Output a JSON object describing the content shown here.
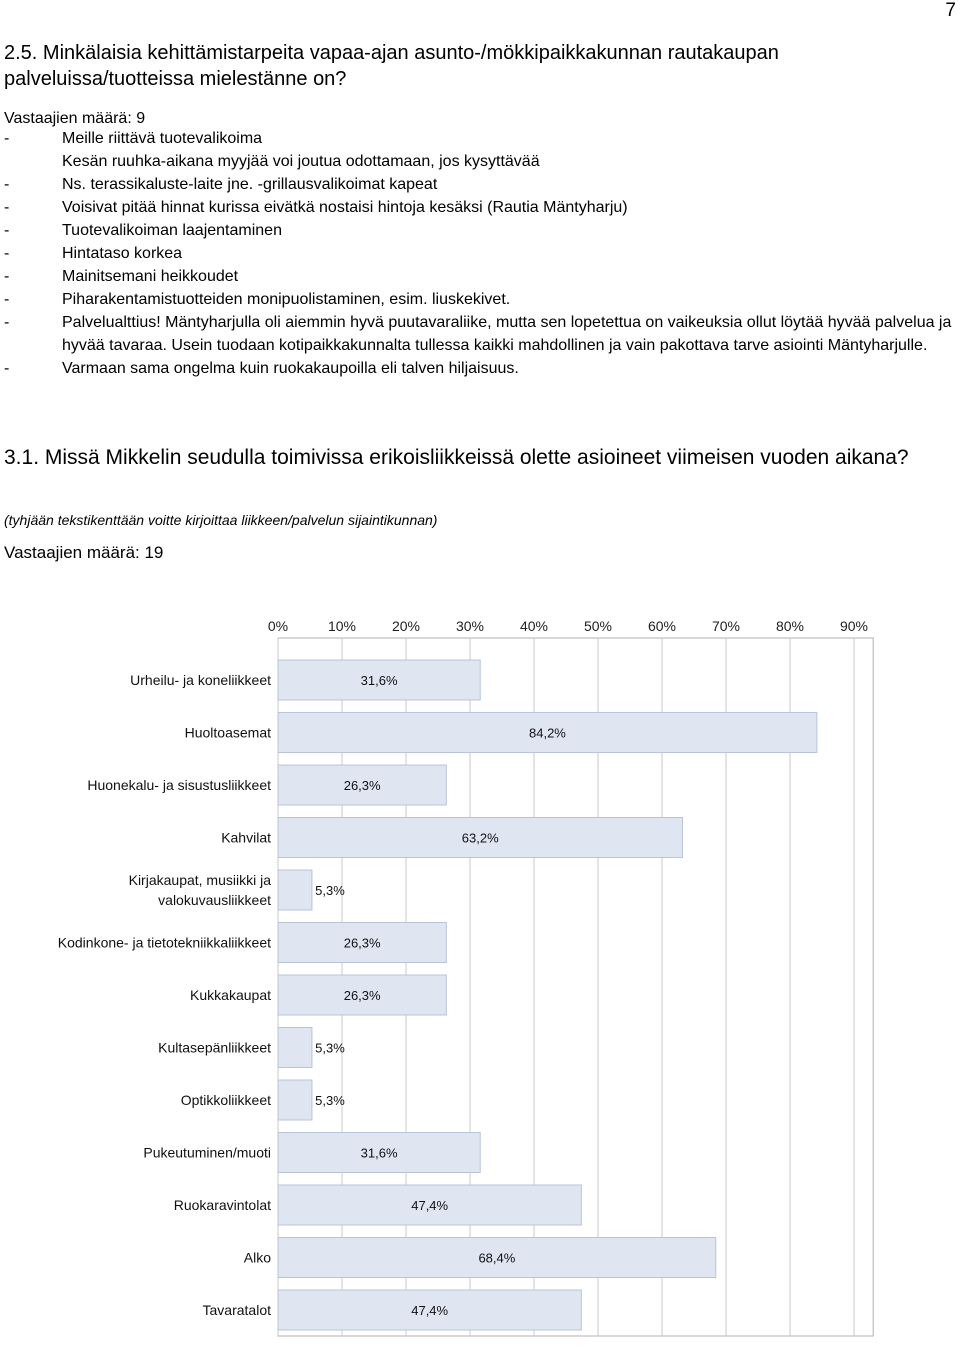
{
  "page_number": "7",
  "q1": {
    "title": "2.5. Minkälaisia kehittämistarpeita vapaa-ajan asunto-/mökkipaikkakunnan rautakaupan palveluissa/tuotteissa mielestänne on?",
    "respondents": "Vastaajien määrä: 9",
    "answers": [
      {
        "dash": "-",
        "text": "Meille riittävä tuotevalikoima"
      },
      {
        "dash": "",
        "text": "Kesän ruuhka-aikana myyjää voi joutua odottamaan, jos kysyttävää"
      },
      {
        "dash": "-",
        "text": "Ns. terassikaluste-laite jne. -grillausvalikoimat kapeat"
      },
      {
        "dash": "-",
        "text": "Voisivat pitää hinnat kurissa eivätkä nostaisi hintoja kesäksi (Rautia Mäntyharju)"
      },
      {
        "dash": "-",
        "text": "Tuotevalikoiman laajentaminen"
      },
      {
        "dash": "-",
        "text": "Hintataso korkea"
      },
      {
        "dash": "-",
        "text": "Mainitsemani heikkoudet"
      },
      {
        "dash": "-",
        "text": "Piharakentamistuotteiden monipuolistaminen, esim. liuskekivet."
      },
      {
        "dash": "-",
        "text": "Palvelualttius! Mäntyharjulla oli aiemmin hyvä puutavaraliike, mutta sen lopetettua on vaikeuksia ollut löytää hyvää palvelua ja hyvää tavaraa. Usein tuodaan kotipaikkakunnalta tullessa kaikki mahdollinen ja vain pakottava tarve asiointi Mäntyharjulle."
      },
      {
        "dash": "-",
        "text": "Varmaan sama ongelma kuin ruokakaupoilla eli talven hiljaisuus."
      }
    ]
  },
  "q2": {
    "title": "3.1. Missä Mikkelin seudulla toimivissa erikoisliikkeissä olette asioineet viimeisen vuoden aikana?",
    "hint": "(tyhjään tekstikenttään voitte kirjoittaa liikkeen/palvelun sijaintikunnan)",
    "respondents": "Vastaajien määrä: 19"
  },
  "chart_data": {
    "type": "bar",
    "orientation": "horizontal",
    "categories": [
      [
        "Urheilu- ja koneliikkeet"
      ],
      [
        "Huoltoasemat"
      ],
      [
        "Huonekalu- ja sisustusliikkeet"
      ],
      [
        "Kahvilat"
      ],
      [
        "Kirjakaupat, musiikki ja",
        "valokuvausliikkeet"
      ],
      [
        "Kodinkone- ja tietotekniikkaliikkeet"
      ],
      [
        "Kukkakaupat"
      ],
      [
        "Kultasepänliikkeet"
      ],
      [
        "Optikkoliikkeet"
      ],
      [
        "Pukeutuminen/muoti"
      ],
      [
        "Ruokaravintolat"
      ],
      [
        "Alko"
      ],
      [
        "Tavaratalot"
      ]
    ],
    "values": [
      31.6,
      84.2,
      26.3,
      63.2,
      5.3,
      26.3,
      26.3,
      5.3,
      5.3,
      31.6,
      47.4,
      68.4,
      47.4
    ],
    "value_labels": [
      "31,6%",
      "84,2%",
      "26,3%",
      "63,2%",
      "5,3%",
      "26,3%",
      "26,3%",
      "5,3%",
      "5,3%",
      "31,6%",
      "47,4%",
      "68,4%",
      "47,4%"
    ],
    "ticks": [
      "0%",
      "10%",
      "20%",
      "30%",
      "40%",
      "50%",
      "60%",
      "70%",
      "80%",
      "90%"
    ],
    "xlim": [
      0,
      93
    ],
    "grid": true,
    "colors": {
      "bar": "#dfe6f2",
      "bar_edge": "#b8c4d8",
      "grid": "#c8c8c8",
      "plot_bg": "#ffffff"
    }
  }
}
